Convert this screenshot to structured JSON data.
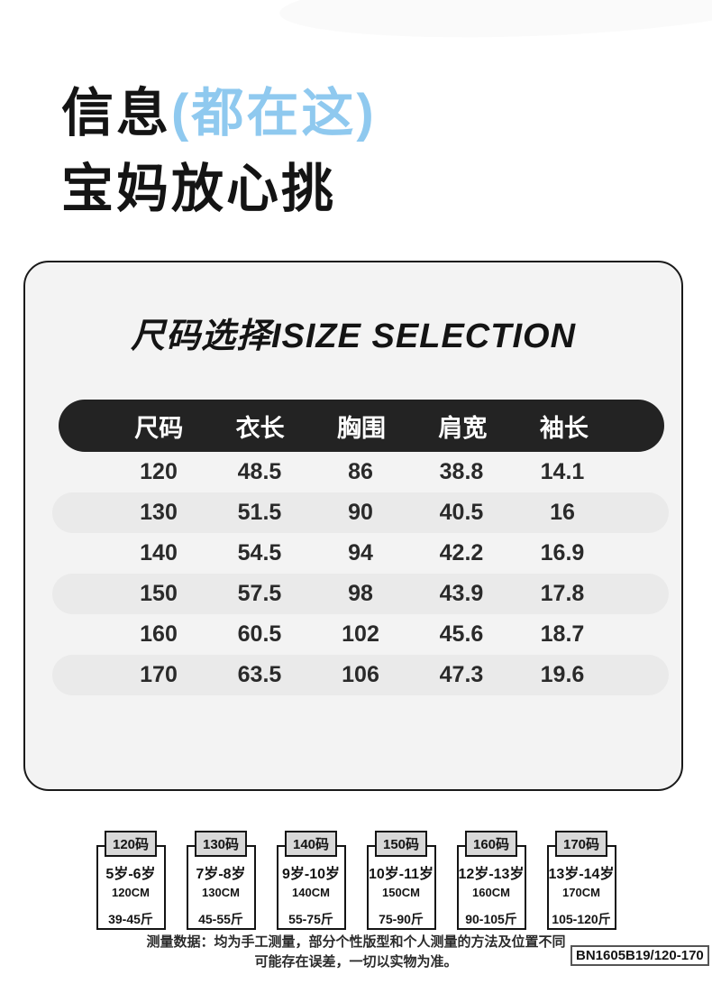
{
  "header": {
    "title_black": "信息",
    "title_blue": "(都在这)",
    "title_line2": "宝妈放心挑"
  },
  "size_card": {
    "title": "尺码选择ISIZE SELECTION",
    "table": {
      "headers": [
        "尺码",
        "衣长",
        "胸围",
        "肩宽",
        "袖长"
      ],
      "rows": [
        [
          "120",
          "48.5",
          "86",
          "38.8",
          "14.1"
        ],
        [
          "130",
          "51.5",
          "90",
          "40.5",
          "16"
        ],
        [
          "140",
          "54.5",
          "94",
          "42.2",
          "16.9"
        ],
        [
          "150",
          "57.5",
          "98",
          "43.9",
          "17.8"
        ],
        [
          "160",
          "60.5",
          "102",
          "45.6",
          "18.7"
        ],
        [
          "170",
          "63.5",
          "106",
          "47.3",
          "19.6"
        ]
      ]
    }
  },
  "size_tags": [
    {
      "label": "120码",
      "age": "5岁-6岁",
      "height": "120CM",
      "weight": "39-45斤"
    },
    {
      "label": "130码",
      "age": "7岁-8岁",
      "height": "130CM",
      "weight": "45-55斤"
    },
    {
      "label": "140码",
      "age": "9岁-10岁",
      "height": "140CM",
      "weight": "55-75斤"
    },
    {
      "label": "150码",
      "age": "10岁-11岁",
      "height": "150CM",
      "weight": "75-90斤"
    },
    {
      "label": "160码",
      "age": "12岁-13岁",
      "height": "160CM",
      "weight": "90-105斤"
    },
    {
      "label": "170码",
      "age": "13岁-14岁",
      "height": "170CM",
      "weight": "105-120斤"
    }
  ],
  "footer": {
    "note_line1": "测量数据：均为手工测量，部分个性版型和个人测量的方法及位置不同",
    "note_line2": "可能存在误差，一切以实物为准。",
    "model_number": "BN1605B19/120-170"
  },
  "colors": {
    "accent_blue": "#8fc9ef",
    "table_header_bg": "#232323",
    "card_bg": "#f3f3f3",
    "row_alt_bg": "#eaeaea",
    "tag_label_bg": "#d8d8d8",
    "text_black": "#141414"
  }
}
